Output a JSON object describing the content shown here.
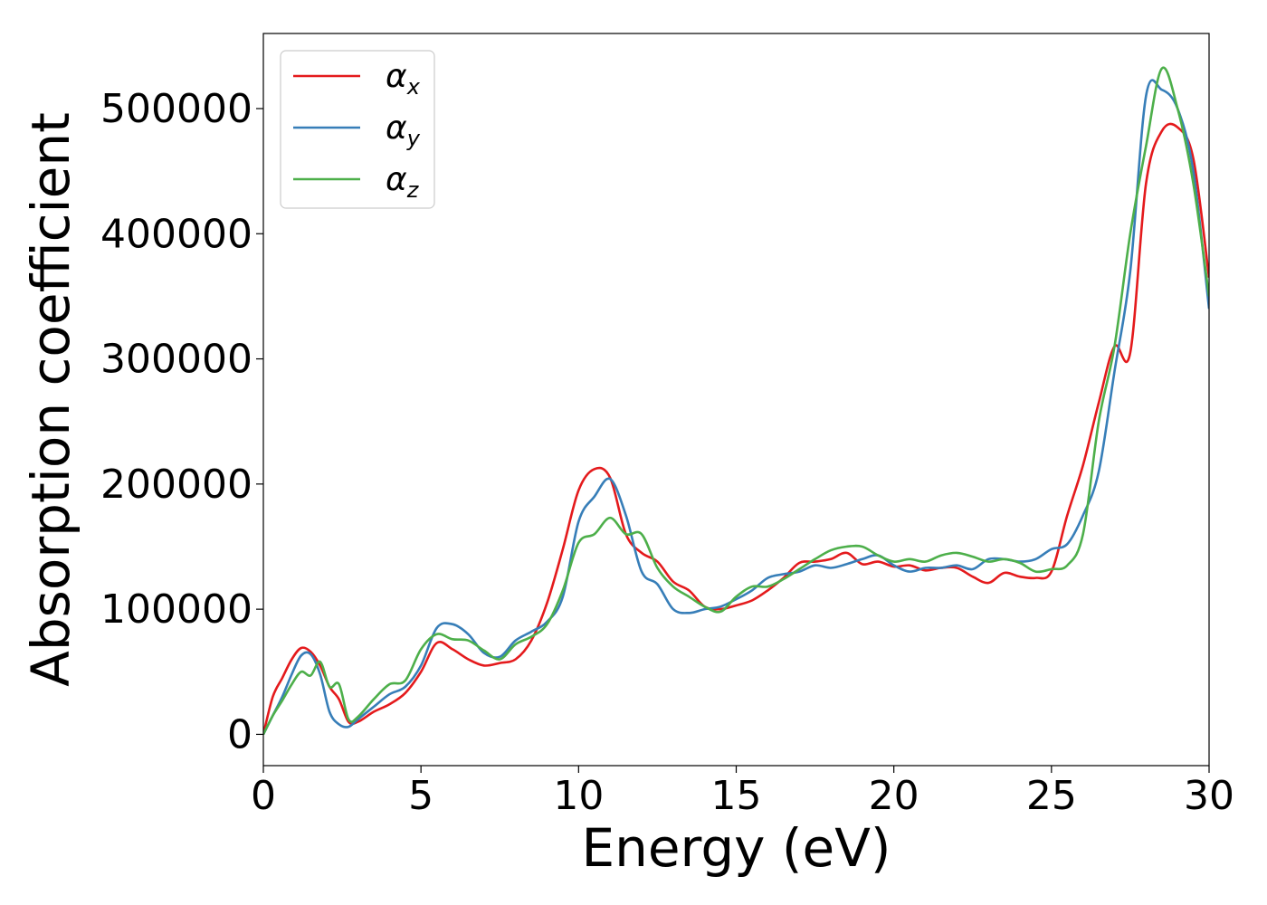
{
  "chart_data": {
    "type": "line",
    "xlabel": "Energy (eV)",
    "ylabel": "Absorption coefficient",
    "xlim": [
      0,
      30
    ],
    "ylim": [
      -25000,
      560000
    ],
    "xticks": [
      0,
      5,
      10,
      15,
      20,
      25,
      30
    ],
    "yticks": [
      0,
      100000,
      200000,
      300000,
      400000,
      500000
    ],
    "grid": false,
    "legend_position": "top-left",
    "series": [
      {
        "name": "α",
        "subscript": "x",
        "color": "#e41a1c",
        "x": [
          0,
          0.3,
          0.6,
          0.9,
          1.2,
          1.5,
          1.8,
          2.1,
          2.4,
          2.7,
          3.0,
          3.5,
          4.0,
          4.5,
          5.0,
          5.5,
          6.0,
          6.5,
          7.0,
          7.5,
          8.0,
          8.5,
          9.0,
          9.5,
          10.0,
          10.5,
          11.0,
          11.5,
          12.0,
          12.5,
          13.0,
          13.5,
          14.0,
          14.5,
          15.0,
          15.5,
          16.0,
          16.5,
          17.0,
          17.5,
          18.0,
          18.5,
          19.0,
          19.5,
          20.0,
          20.5,
          21.0,
          21.5,
          22.0,
          22.5,
          23.0,
          23.5,
          24.0,
          24.5,
          25.0,
          25.5,
          26.0,
          26.5,
          27.0,
          27.5,
          28.0,
          28.5,
          29.0,
          29.5,
          30.0
        ],
        "y": [
          0,
          30000,
          45000,
          60000,
          69000,
          66000,
          55000,
          38000,
          28000,
          10000,
          10000,
          18000,
          24000,
          33000,
          50000,
          73000,
          68000,
          60000,
          55000,
          57000,
          60000,
          75000,
          105000,
          148000,
          195000,
          212000,
          205000,
          160000,
          145000,
          138000,
          122000,
          115000,
          102000,
          100000,
          103000,
          107000,
          115000,
          125000,
          137000,
          138000,
          140000,
          145000,
          136000,
          138000,
          134000,
          135000,
          131000,
          133000,
          133000,
          126000,
          121000,
          129000,
          126000,
          125000,
          130000,
          175000,
          215000,
          265000,
          310000,
          305000,
          440000,
          482000,
          485000,
          460000,
          365000
        ]
      },
      {
        "name": "α",
        "subscript": "y",
        "color": "#377eb8",
        "x": [
          0,
          0.3,
          0.6,
          0.9,
          1.2,
          1.5,
          1.8,
          2.1,
          2.4,
          2.7,
          3.0,
          3.5,
          4.0,
          4.5,
          5.0,
          5.5,
          6.0,
          6.5,
          7.0,
          7.5,
          8.0,
          8.5,
          9.0,
          9.5,
          10.0,
          10.5,
          11.0,
          11.5,
          12.0,
          12.5,
          13.0,
          13.5,
          14.0,
          14.5,
          15.0,
          15.5,
          16.0,
          16.5,
          17.0,
          17.5,
          18.0,
          18.5,
          19.0,
          19.5,
          20.0,
          20.5,
          21.0,
          21.5,
          22.0,
          22.5,
          23.0,
          23.5,
          24.0,
          24.5,
          25.0,
          25.5,
          26.0,
          26.5,
          27.0,
          27.5,
          28.0,
          28.5,
          29.0,
          29.5,
          30.0
        ],
        "y": [
          0,
          15000,
          30000,
          48000,
          63000,
          64000,
          48000,
          18000,
          8000,
          6000,
          12000,
          22000,
          32000,
          38000,
          55000,
          85000,
          88000,
          80000,
          65000,
          62000,
          75000,
          82000,
          90000,
          110000,
          170000,
          190000,
          204000,
          175000,
          130000,
          120000,
          100000,
          97000,
          100000,
          102000,
          108000,
          115000,
          125000,
          128000,
          130000,
          135000,
          133000,
          136000,
          140000,
          143000,
          135000,
          130000,
          133000,
          133000,
          135000,
          132000,
          140000,
          140000,
          138000,
          140000,
          148000,
          152000,
          175000,
          210000,
          290000,
          370000,
          510000,
          515000,
          500000,
          450000,
          340000
        ]
      },
      {
        "name": "α",
        "subscript": "z",
        "color": "#4daf4a",
        "x": [
          0,
          0.3,
          0.6,
          0.9,
          1.2,
          1.5,
          1.8,
          2.1,
          2.4,
          2.7,
          3.0,
          3.5,
          4.0,
          4.5,
          5.0,
          5.5,
          6.0,
          6.5,
          7.0,
          7.5,
          8.0,
          8.5,
          9.0,
          9.5,
          10.0,
          10.5,
          11.0,
          11.5,
          12.0,
          12.5,
          13.0,
          13.5,
          14.0,
          14.5,
          15.0,
          15.5,
          16.0,
          16.5,
          17.0,
          17.5,
          18.0,
          18.5,
          19.0,
          19.5,
          20.0,
          20.5,
          21.0,
          21.5,
          22.0,
          22.5,
          23.0,
          23.5,
          24.0,
          24.5,
          25.0,
          25.5,
          26.0,
          26.5,
          27.0,
          27.5,
          28.0,
          28.5,
          29.0,
          29.5,
          30.0
        ],
        "y": [
          0,
          15000,
          27000,
          40000,
          50000,
          47000,
          58000,
          38000,
          40000,
          12000,
          14000,
          28000,
          40000,
          43000,
          68000,
          80000,
          76000,
          75000,
          67000,
          60000,
          72000,
          78000,
          88000,
          115000,
          153000,
          160000,
          173000,
          160000,
          160000,
          133000,
          118000,
          110000,
          102000,
          98000,
          110000,
          118000,
          118000,
          124000,
          132000,
          140000,
          147000,
          150000,
          150000,
          143000,
          138000,
          140000,
          138000,
          143000,
          145000,
          142000,
          138000,
          140000,
          137000,
          130000,
          132000,
          135000,
          160000,
          250000,
          310000,
          400000,
          470000,
          532000,
          500000,
          440000,
          350000
        ]
      }
    ]
  }
}
